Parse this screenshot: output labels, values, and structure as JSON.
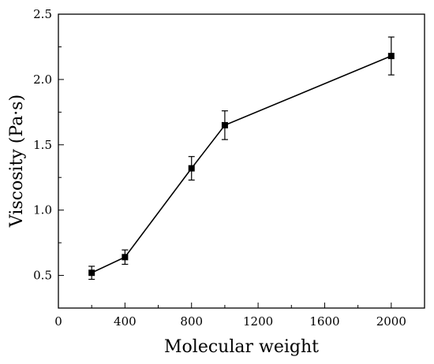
{
  "chart_data": {
    "type": "line",
    "xlabel": "Molecular weight",
    "ylabel": "Viscosity (Pa·s)",
    "xlim": [
      0,
      2200
    ],
    "ylim": [
      0.25,
      2.5
    ],
    "x_ticks": [
      0,
      400,
      800,
      1200,
      1600,
      2000
    ],
    "x_tick_labels": [
      "0",
      "400",
      "800",
      "1200",
      "1600",
      "2000"
    ],
    "x_minor_step": 200,
    "y_ticks": [
      0.5,
      1.0,
      1.5,
      2.0,
      2.5
    ],
    "y_tick_labels": [
      "0.5",
      "1.0",
      "1.5",
      "2.0",
      "2.5"
    ],
    "y_minor_step": 0.25,
    "grid": false,
    "series": [
      {
        "marker": "square",
        "color": "#000000",
        "points": [
          {
            "x": 200,
            "y": 0.52,
            "err": 0.05
          },
          {
            "x": 400,
            "y": 0.64,
            "err": 0.055
          },
          {
            "x": 800,
            "y": 1.32,
            "err": 0.09
          },
          {
            "x": 1000,
            "y": 1.65,
            "err": 0.11
          },
          {
            "x": 2000,
            "y": 2.18,
            "err": 0.145
          }
        ]
      }
    ]
  }
}
